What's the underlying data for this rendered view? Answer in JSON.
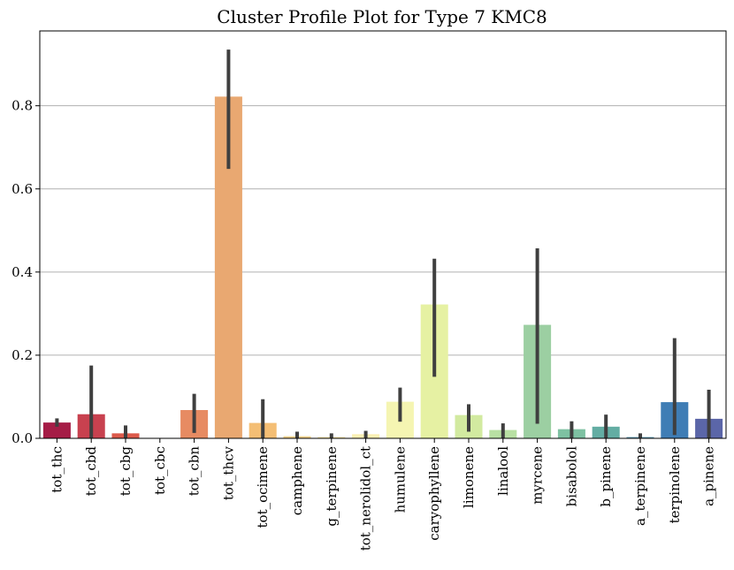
{
  "chart_data": {
    "type": "bar",
    "title": "Cluster Profile Plot for Type 7 KMC8",
    "xlabel": "",
    "ylabel": "",
    "ylim": [
      0,
      0.98
    ],
    "yticks": [
      "0.0",
      "0.2",
      "0.4",
      "0.6",
      "0.8"
    ],
    "ytick_values": [
      0,
      0.2,
      0.4,
      0.6,
      0.8
    ],
    "grid": "horizontal",
    "categories": [
      "tot_thc",
      "tot_cbd",
      "tot_cbg",
      "tot_cbc",
      "tot_cbn",
      "tot_thcv",
      "tot_ocimene",
      "camphene",
      "g_terpinene",
      "tot_nerolidol_ct",
      "humulene",
      "caryophyllene",
      "limonene",
      "linalool",
      "myrcene",
      "bisabolol",
      "b_pinene",
      "a_terpinene",
      "terpinolene",
      "a_pinene"
    ],
    "values": [
      0.038,
      0.058,
      0.012,
      0.0,
      0.068,
      0.822,
      0.037,
      0.005,
      0.003,
      0.01,
      0.088,
      0.322,
      0.056,
      0.02,
      0.273,
      0.022,
      0.028,
      0.003,
      0.087,
      0.047
    ],
    "error_low": [
      0.028,
      0.0,
      0.0,
      0.0,
      0.013,
      0.648,
      0.0,
      0.0,
      0.0,
      0.0,
      0.04,
      0.148,
      0.016,
      0.0,
      0.035,
      0.0,
      0.0,
      0.0,
      0.008,
      0.0
    ],
    "error_high": [
      0.048,
      0.175,
      0.031,
      0.0,
      0.107,
      0.935,
      0.094,
      0.016,
      0.012,
      0.018,
      0.122,
      0.432,
      0.082,
      0.036,
      0.457,
      0.041,
      0.057,
      0.012,
      0.241,
      0.117
    ],
    "colors": [
      "#a51c46",
      "#c8414f",
      "#dc5a4b",
      "#ee7146",
      "#e78b62",
      "#e9a871",
      "#f4be74",
      "#f7d38a",
      "#f9e59f",
      "#fbf0b4",
      "#f5f5b2",
      "#e6f1a3",
      "#d2eaa0",
      "#b8e0a3",
      "#9ccfa2",
      "#7ec1a2",
      "#63ada3",
      "#5a96b1",
      "#3f7db5",
      "#5b66a8"
    ]
  }
}
